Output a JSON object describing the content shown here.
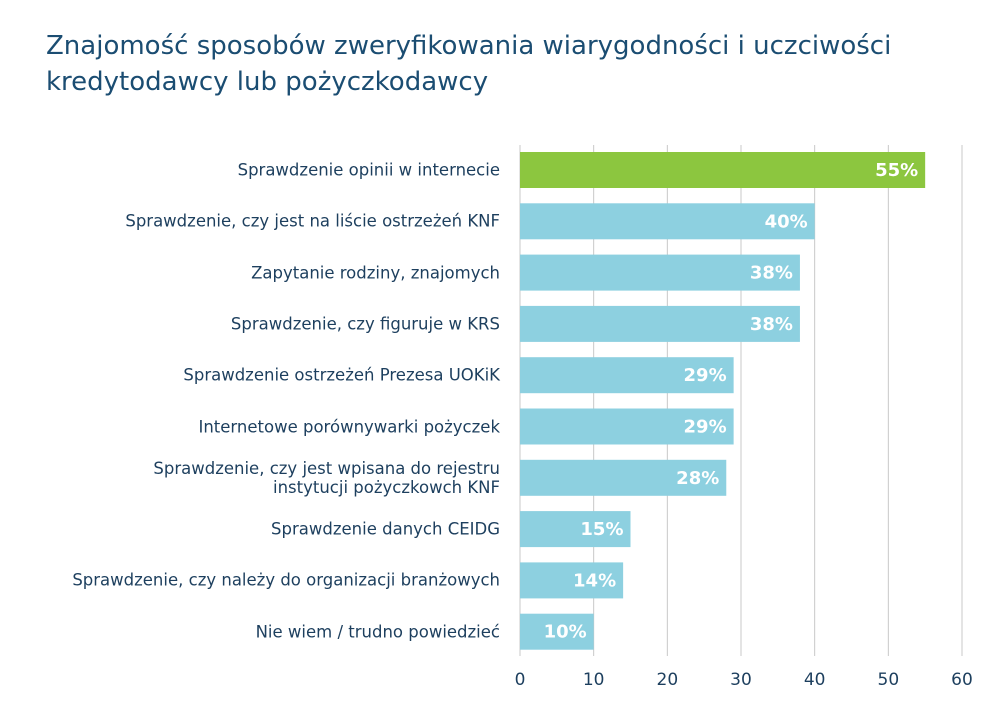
{
  "chart_data": {
    "type": "hbar",
    "title": [
      "Znajomość sposobów zweryfikowania wiarygodności i uczciwości",
      "kredytodawcy lub pożyczkodawcy"
    ],
    "categories": [
      "Sprawdzenie opinii w internecie",
      "Sprawdzenie, czy jest na liście ostrzeżeń KNF",
      "Zapytanie rodziny, znajomych",
      "Sprawdzenie, czy figuruje w KRS",
      "Sprawdzenie ostrzeżeń Prezesa UOKiK",
      "Internetowe porównywarki pożyczek",
      "Sprawdzenie, czy jest wpisana do rejestru\ninstytucji pożyczkowch KNF",
      "Sprawdzenie danych CEIDG",
      "Sprawdzenie, czy należy do organizacji branżowych",
      "Nie wiem / trudno powiedzieć"
    ],
    "values": [
      55,
      40,
      38,
      38,
      29,
      29,
      28,
      15,
      14,
      10
    ],
    "value_labels": [
      "55%",
      "40%",
      "38%",
      "38%",
      "29%",
      "29%",
      "28%",
      "15%",
      "14%",
      "10%"
    ],
    "colors": [
      "#8cc63f",
      "#8dd0e0",
      "#8dd0e0",
      "#8dd0e0",
      "#8dd0e0",
      "#8dd0e0",
      "#8dd0e0",
      "#8dd0e0",
      "#8dd0e0",
      "#8dd0e0"
    ],
    "xlim": [
      0,
      60
    ],
    "xticks": [
      0,
      10,
      20,
      30,
      40,
      50,
      60
    ],
    "grid": true
  }
}
